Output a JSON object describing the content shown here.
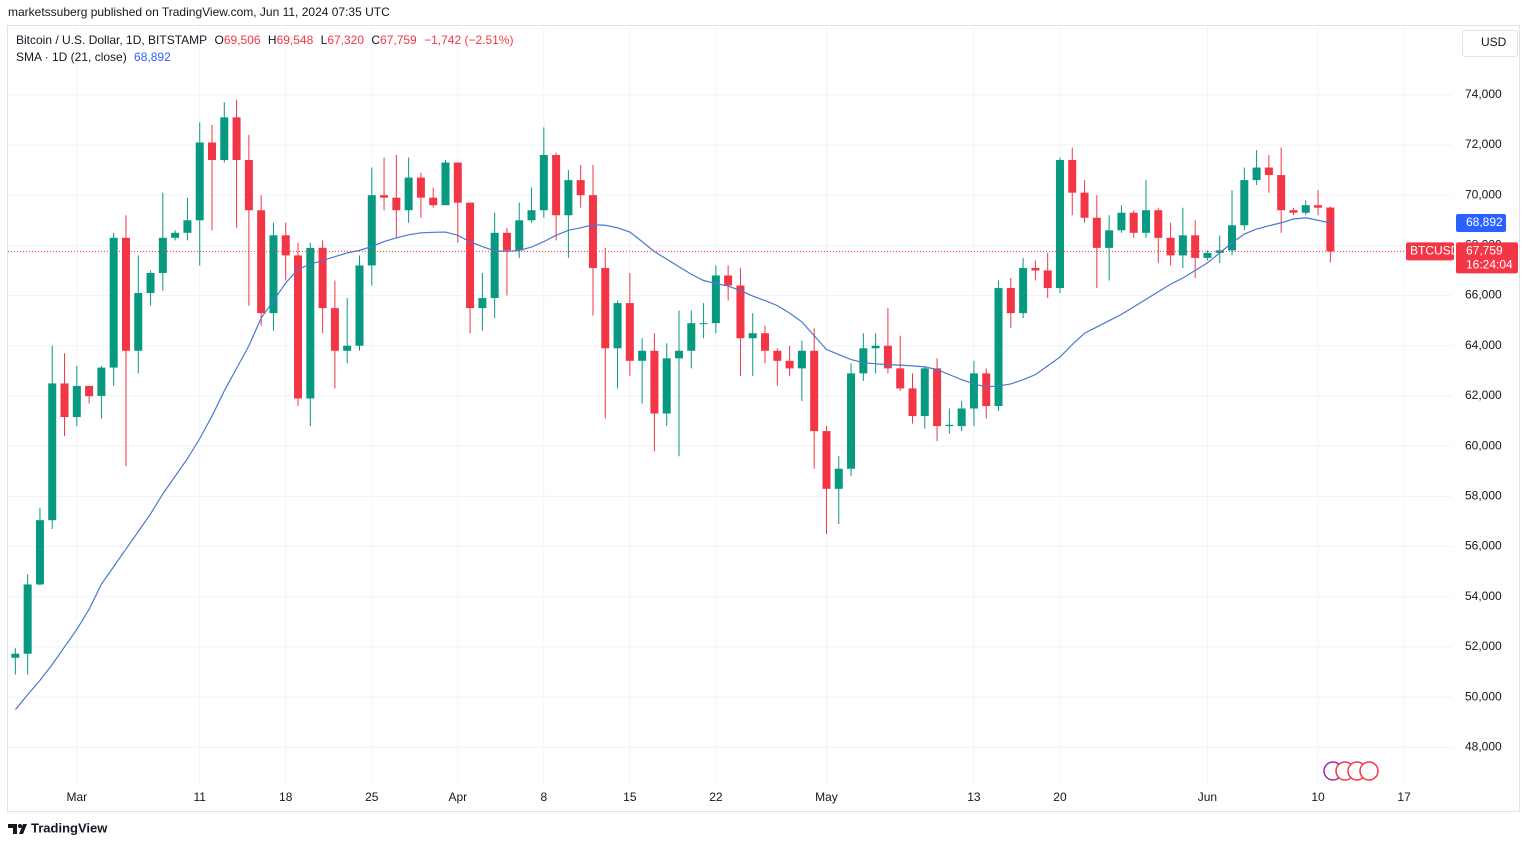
{
  "header": {
    "published": "marketssuberg published on TradingView.com, Jun 11, 2024 07:35 UTC",
    "currency": "USD"
  },
  "footer": {
    "brand": "TradingView"
  },
  "chart_data": {
    "type": "candlestick",
    "title": "Bitcoin / U.S. Dollar, 1D, BITSTAMP",
    "ohlc_legend": {
      "o_label": "O",
      "o": "69,506",
      "h_label": "H",
      "h": "69,548",
      "l_label": "L",
      "l": "67,320",
      "c_label": "C",
      "c": "67,759",
      "change": "−1,742 (−2.51%)"
    },
    "xlim": [
      -0.6,
      116.9
    ],
    "xticks": [
      {
        "value": 5,
        "label": "Mar"
      },
      {
        "value": 15,
        "label": "11"
      },
      {
        "value": 22,
        "label": "18"
      },
      {
        "value": 29,
        "label": "25"
      },
      {
        "value": 36,
        "label": "Apr"
      },
      {
        "value": 43,
        "label": "8"
      },
      {
        "value": 50,
        "label": "15"
      },
      {
        "value": 57,
        "label": "22"
      },
      {
        "value": 66,
        "label": "May"
      },
      {
        "value": 78,
        "label": "13"
      },
      {
        "value": 85,
        "label": "20"
      },
      {
        "value": 97,
        "label": "Jun"
      },
      {
        "value": 106,
        "label": "10"
      },
      {
        "value": 113,
        "label": "17"
      }
    ],
    "ylim": [
      46500,
      76700
    ],
    "yticks": [
      {
        "value": 48000,
        "label": "48,000"
      },
      {
        "value": 50000,
        "label": "50,000"
      },
      {
        "value": 52000,
        "label": "52,000"
      },
      {
        "value": 54000,
        "label": "54,000"
      },
      {
        "value": 56000,
        "label": "56,000"
      },
      {
        "value": 58000,
        "label": "58,000"
      },
      {
        "value": 60000,
        "label": "60,000"
      },
      {
        "value": 62000,
        "label": "62,000"
      },
      {
        "value": 64000,
        "label": "64,000"
      },
      {
        "value": 66000,
        "label": "66,000"
      },
      {
        "value": 68000,
        "label": "68,000"
      },
      {
        "value": 70000,
        "label": "70,000"
      },
      {
        "value": 72000,
        "label": "72,000"
      },
      {
        "value": 74000,
        "label": "74,000"
      }
    ],
    "grid": true,
    "series": [
      {
        "name": "BTCUSD",
        "up_color": "#089981",
        "down_color": "#f23645",
        "last_value_label": "67,759",
        "countdown": "16:24:04",
        "open": [
          51570,
          51730,
          54490,
          57050,
          62500,
          61160,
          62400,
          62000,
          63130,
          68300,
          63800,
          66100,
          66900,
          68300,
          68500,
          69000,
          72100,
          71400,
          73100,
          71400,
          69400,
          65300,
          68400,
          67600,
          61900,
          67900,
          65500,
          63800,
          64000,
          67200,
          70000,
          69900,
          69400,
          70700,
          69900,
          69600,
          71300,
          69700,
          65500,
          65900,
          68500,
          67800,
          69000,
          69400,
          71600,
          69200,
          70600,
          70000,
          67100,
          63900,
          65700,
          63400,
          63800,
          61300,
          63500,
          63800,
          64900,
          64900,
          66800,
          66400,
          64300,
          64500,
          63800,
          63400,
          63100,
          63800,
          60600,
          58300,
          59100,
          62900,
          63900,
          64000,
          63100,
          62300,
          61200,
          63100,
          60800,
          60800,
          61500,
          62900,
          61600,
          66300,
          65300,
          67100,
          67000,
          66300,
          71400,
          70100,
          69100,
          67900,
          68600,
          69300,
          68500,
          69400,
          68300,
          67600,
          68400,
          67500,
          67700,
          67800,
          68800,
          70600,
          71100,
          70800,
          69400,
          69300,
          69600,
          69506
        ],
        "high": [
          51950,
          54900,
          57550,
          64000,
          63700,
          63200,
          62400,
          63200,
          68500,
          69200,
          67600,
          67000,
          70100,
          68600,
          69900,
          72900,
          72800,
          73700,
          73800,
          72400,
          70000,
          68900,
          68900,
          68100,
          68100,
          68200,
          66600,
          65900,
          67600,
          71100,
          71500,
          71600,
          71500,
          70900,
          70300,
          71400,
          71300,
          69700,
          66900,
          69300,
          68700,
          69700,
          70300,
          72700,
          71700,
          71000,
          71200,
          71200,
          67900,
          65800,
          66900,
          64300,
          64500,
          64100,
          65400,
          65400,
          65700,
          67200,
          67200,
          67100,
          65300,
          64800,
          63900,
          64000,
          64200,
          64700,
          60800,
          59600,
          63300,
          64500,
          64500,
          65500,
          64400,
          62900,
          63200,
          63500,
          61500,
          61800,
          63400,
          63100,
          66600,
          66700,
          67500,
          67400,
          67700,
          71500,
          71900,
          70600,
          70000,
          69200,
          69600,
          69400,
          70600,
          69500,
          68900,
          69500,
          69000,
          67800,
          68400,
          70200,
          71100,
          71800,
          71600,
          71900,
          69500,
          69800,
          70200,
          69548
        ],
        "low": [
          50900,
          50900,
          54450,
          56700,
          60400,
          60800,
          61700,
          61100,
          62400,
          59200,
          62900,
          65600,
          66200,
          68200,
          68200,
          67200,
          68600,
          71300,
          68700,
          65600,
          64800,
          64600,
          66600,
          61600,
          60800,
          64500,
          62300,
          63300,
          63800,
          66400,
          69400,
          68300,
          68900,
          69100,
          69500,
          69600,
          68100,
          64500,
          64600,
          65100,
          66000,
          67500,
          68900,
          69100,
          68200,
          67500,
          69500,
          65200,
          61100,
          62300,
          62800,
          61700,
          59800,
          60800,
          59600,
          63100,
          64300,
          64500,
          65800,
          62800,
          62800,
          63300,
          62400,
          62800,
          61800,
          59100,
          56500,
          56900,
          58800,
          62600,
          62900,
          62900,
          62200,
          60900,
          60700,
          60200,
          60500,
          60600,
          60800,
          61100,
          61400,
          64700,
          65100,
          66600,
          65900,
          66100,
          69200,
          68900,
          66300,
          66600,
          68500,
          68300,
          68300,
          67300,
          67200,
          67100,
          66700,
          67400,
          67300,
          67600,
          68600,
          70400,
          70100,
          68500,
          69200,
          69200,
          69200,
          67320
        ],
        "close": [
          51730,
          54490,
          57050,
          62500,
          61160,
          62400,
          61990,
          63130,
          68300,
          63800,
          66100,
          66900,
          68300,
          68500,
          69000,
          72100,
          71400,
          73100,
          71400,
          69400,
          65300,
          68400,
          67600,
          61900,
          67900,
          65500,
          63800,
          64000,
          67200,
          70000,
          69900,
          69400,
          70700,
          69900,
          69600,
          71300,
          69700,
          65500,
          65900,
          68500,
          67800,
          69000,
          69400,
          71600,
          69200,
          70600,
          70000,
          67100,
          63900,
          65700,
          63400,
          63800,
          61300,
          63500,
          63800,
          64900,
          64900,
          66800,
          66400,
          64300,
          64500,
          63800,
          63400,
          63100,
          63800,
          60600,
          58300,
          59100,
          62900,
          63900,
          64000,
          63100,
          62300,
          61200,
          63100,
          60800,
          60850,
          61500,
          62900,
          61600,
          66300,
          65300,
          67100,
          67000,
          66300,
          71400,
          70100,
          69100,
          67900,
          68600,
          69300,
          68500,
          69400,
          68300,
          67600,
          68400,
          67500,
          67700,
          67800,
          68800,
          70600,
          71100,
          70800,
          69400,
          69300,
          69600,
          69500,
          67759
        ]
      },
      {
        "name": "SMA · 1D (21, close)",
        "color": "#4a78d0",
        "last_value_label": "68,892",
        "values": [
          49500,
          50100,
          50670,
          51300,
          52000,
          52700,
          53500,
          54500,
          55200,
          55900,
          56600,
          57300,
          58100,
          58800,
          59500,
          60300,
          61200,
          62200,
          63100,
          64000,
          65100,
          65800,
          66500,
          67050,
          67250,
          67400,
          67550,
          67700,
          67800,
          67950,
          68150,
          68300,
          68420,
          68500,
          68520,
          68530,
          68400,
          68140,
          67950,
          67780,
          67760,
          67800,
          67930,
          68150,
          68400,
          68600,
          68700,
          68820,
          68800,
          68700,
          68530,
          68150,
          67750,
          67450,
          67150,
          66850,
          66600,
          66480,
          66380,
          66200,
          65980,
          65800,
          65600,
          65300,
          64950,
          64400,
          63850,
          63650,
          63450,
          63330,
          63280,
          63250,
          63230,
          63200,
          63160,
          63050,
          62850,
          62650,
          62480,
          62360,
          62400,
          62480,
          62650,
          62850,
          63200,
          63550,
          64050,
          64500,
          64750,
          65000,
          65250,
          65550,
          65850,
          66150,
          66450,
          66700,
          67000,
          67300,
          67700,
          68100,
          68450,
          68650,
          68780,
          68900,
          69050,
          69100,
          69000,
          68892
        ]
      }
    ]
  }
}
